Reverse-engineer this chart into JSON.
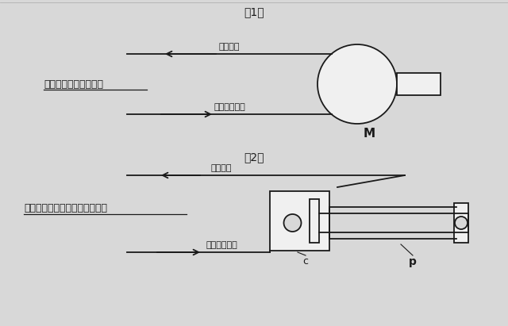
{
  "bg_color": "#d8d8d8",
  "line_color": "#1a1a1a",
  "title1": "（1）",
  "title2": "（2）",
  "label_modori": "（戻り）",
  "label_okuri": "（送り込み）",
  "label_text1": "送り量と戻り量が同量",
  "label_text2": "送り量に対して戻り量が少ない",
  "label_M": "M",
  "label_c": "c",
  "label_p": "p"
}
